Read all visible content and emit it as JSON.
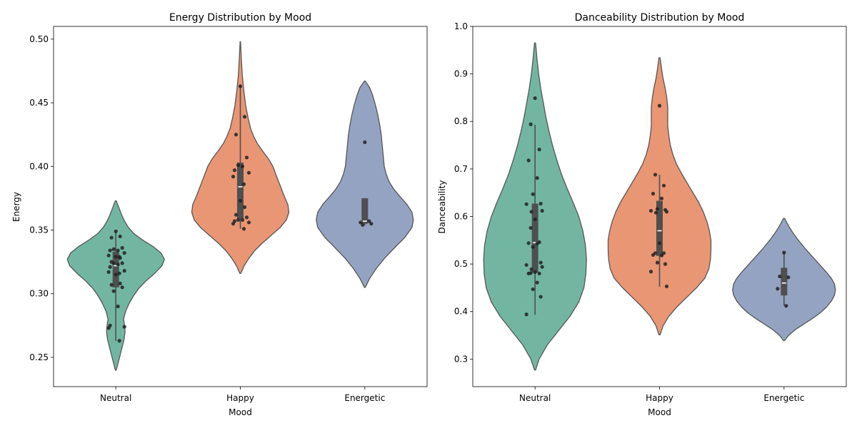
{
  "chart_data": [
    {
      "type": "violin",
      "title": "Energy Distribution by Mood",
      "xlabel": "Mood",
      "ylabel": "Energy",
      "ylim": [
        0.227,
        0.51
      ],
      "yticks": [
        0.25,
        0.3,
        0.35,
        0.4,
        0.45,
        0.5
      ],
      "ytick_labels": [
        "0.25",
        "0.30",
        "0.35",
        "0.40",
        "0.45",
        "0.50"
      ],
      "categories": [
        "Neutral",
        "Happy",
        "Energetic"
      ],
      "colors": [
        "#72b6a1",
        "#e99675",
        "#95a3c3"
      ],
      "violins": [
        {
          "category": "Neutral",
          "min": 0.24,
          "max": 0.373,
          "profile": [
            [
              0.24,
              0.01
            ],
            [
              0.246,
              0.05
            ],
            [
              0.252,
              0.09
            ],
            [
              0.258,
              0.13
            ],
            [
              0.264,
              0.17
            ],
            [
              0.27,
              0.19
            ],
            [
              0.275,
              0.18
            ],
            [
              0.28,
              0.16
            ],
            [
              0.286,
              0.2
            ],
            [
              0.292,
              0.27
            ],
            [
              0.298,
              0.36
            ],
            [
              0.304,
              0.47
            ],
            [
              0.31,
              0.62
            ],
            [
              0.316,
              0.8
            ],
            [
              0.322,
              0.95
            ],
            [
              0.327,
              1.0
            ],
            [
              0.332,
              0.93
            ],
            [
              0.337,
              0.77
            ],
            [
              0.342,
              0.56
            ],
            [
              0.347,
              0.38
            ],
            [
              0.352,
              0.26
            ],
            [
              0.357,
              0.18
            ],
            [
              0.362,
              0.12
            ],
            [
              0.367,
              0.07
            ],
            [
              0.373,
              0.01
            ]
          ],
          "box": {
            "q1": 0.305,
            "median": 0.322,
            "q3": 0.333,
            "whisker_low": 0.263,
            "whisker_high": 0.349
          },
          "points": [
            0.349,
            0.345,
            0.344,
            0.336,
            0.335,
            0.334,
            0.334,
            0.332,
            0.33,
            0.329,
            0.329,
            0.328,
            0.325,
            0.324,
            0.324,
            0.323,
            0.321,
            0.318,
            0.317,
            0.316,
            0.315,
            0.308,
            0.307,
            0.305,
            0.302,
            0.29,
            0.275,
            0.274,
            0.273,
            0.263
          ]
        },
        {
          "category": "Happy",
          "min": 0.316,
          "max": 0.498,
          "profile": [
            [
              0.316,
              0.01
            ],
            [
              0.322,
              0.08
            ],
            [
              0.328,
              0.18
            ],
            [
              0.334,
              0.3
            ],
            [
              0.34,
              0.46
            ],
            [
              0.346,
              0.64
            ],
            [
              0.352,
              0.82
            ],
            [
              0.358,
              0.95
            ],
            [
              0.364,
              1.0
            ],
            [
              0.37,
              0.98
            ],
            [
              0.376,
              0.91
            ],
            [
              0.382,
              0.85
            ],
            [
              0.388,
              0.79
            ],
            [
              0.394,
              0.73
            ],
            [
              0.4,
              0.67
            ],
            [
              0.406,
              0.58
            ],
            [
              0.412,
              0.46
            ],
            [
              0.418,
              0.35
            ],
            [
              0.424,
              0.27
            ],
            [
              0.43,
              0.21
            ],
            [
              0.438,
              0.16
            ],
            [
              0.448,
              0.11
            ],
            [
              0.46,
              0.07
            ],
            [
              0.472,
              0.04
            ],
            [
              0.485,
              0.02
            ],
            [
              0.498,
              0.005
            ]
          ],
          "box": {
            "q1": 0.359,
            "median": 0.384,
            "q3": 0.403,
            "whisker_low": 0.351,
            "whisker_high": 0.463
          },
          "points": [
            0.463,
            0.439,
            0.425,
            0.407,
            0.401,
            0.4,
            0.397,
            0.395,
            0.392,
            0.386,
            0.373,
            0.368,
            0.362,
            0.36,
            0.358,
            0.358,
            0.357,
            0.356,
            0.355,
            0.351
          ]
        },
        {
          "category": "Energetic",
          "min": 0.305,
          "max": 0.467,
          "profile": [
            [
              0.305,
              0.01
            ],
            [
              0.312,
              0.1
            ],
            [
              0.32,
              0.24
            ],
            [
              0.328,
              0.41
            ],
            [
              0.336,
              0.61
            ],
            [
              0.344,
              0.82
            ],
            [
              0.352,
              0.97
            ],
            [
              0.358,
              1.0
            ],
            [
              0.364,
              0.97
            ],
            [
              0.37,
              0.87
            ],
            [
              0.376,
              0.73
            ],
            [
              0.382,
              0.6
            ],
            [
              0.388,
              0.5
            ],
            [
              0.394,
              0.44
            ],
            [
              0.4,
              0.4
            ],
            [
              0.408,
              0.38
            ],
            [
              0.416,
              0.36
            ],
            [
              0.424,
              0.34
            ],
            [
              0.432,
              0.31
            ],
            [
              0.44,
              0.27
            ],
            [
              0.448,
              0.22
            ],
            [
              0.456,
              0.16
            ],
            [
              0.462,
              0.1
            ],
            [
              0.467,
              0.01
            ]
          ],
          "box": {
            "q1": 0.355,
            "median": 0.357,
            "q3": 0.375,
            "whisker_low": 0.354,
            "whisker_high": 0.375
          },
          "points": [
            0.419,
            0.357,
            0.356,
            0.355,
            0.354
          ]
        }
      ]
    },
    {
      "type": "violin",
      "title": "Danceability Distribution by Mood",
      "xlabel": "Mood",
      "ylabel": "Danceability",
      "ylim": [
        0.242,
        1.0
      ],
      "yticks": [
        0.3,
        0.4,
        0.5,
        0.6,
        0.7,
        0.8,
        0.9,
        1.0
      ],
      "ytick_labels": [
        "0.3",
        "0.4",
        "0.5",
        "0.6",
        "0.7",
        "0.8",
        "0.9",
        "1.0"
      ],
      "categories": [
        "Neutral",
        "Happy",
        "Energetic"
      ],
      "colors": [
        "#72b6a1",
        "#e99675",
        "#95a3c3"
      ],
      "violins": [
        {
          "category": "Neutral",
          "min": 0.277,
          "max": 0.965,
          "profile": [
            [
              0.277,
              0.01
            ],
            [
              0.3,
              0.08
            ],
            [
              0.33,
              0.24
            ],
            [
              0.36,
              0.46
            ],
            [
              0.39,
              0.68
            ],
            [
              0.42,
              0.85
            ],
            [
              0.45,
              0.95
            ],
            [
              0.48,
              0.99
            ],
            [
              0.51,
              1.0
            ],
            [
              0.54,
              0.98
            ],
            [
              0.57,
              0.93
            ],
            [
              0.6,
              0.85
            ],
            [
              0.63,
              0.74
            ],
            [
              0.66,
              0.62
            ],
            [
              0.69,
              0.51
            ],
            [
              0.72,
              0.42
            ],
            [
              0.75,
              0.34
            ],
            [
              0.78,
              0.27
            ],
            [
              0.81,
              0.21
            ],
            [
              0.84,
              0.16
            ],
            [
              0.87,
              0.11
            ],
            [
              0.9,
              0.07
            ],
            [
              0.93,
              0.04
            ],
            [
              0.965,
              0.01
            ]
          ],
          "box": {
            "q1": 0.482,
            "median": 0.545,
            "q3": 0.627,
            "whisker_low": 0.393,
            "whisker_high": 0.793
          },
          "points": [
            0.849,
            0.794,
            0.741,
            0.718,
            0.681,
            0.647,
            0.627,
            0.626,
            0.612,
            0.61,
            0.594,
            0.576,
            0.546,
            0.544,
            0.543,
            0.536,
            0.503,
            0.498,
            0.494,
            0.489,
            0.483,
            0.481,
            0.48,
            0.48,
            0.461,
            0.447,
            0.431,
            0.394
          ]
        },
        {
          "category": "Happy",
          "min": 0.351,
          "max": 0.934,
          "profile": [
            [
              0.351,
              0.01
            ],
            [
              0.37,
              0.07
            ],
            [
              0.39,
              0.18
            ],
            [
              0.41,
              0.34
            ],
            [
              0.43,
              0.53
            ],
            [
              0.45,
              0.72
            ],
            [
              0.47,
              0.88
            ],
            [
              0.49,
              0.96
            ],
            [
              0.51,
              0.99
            ],
            [
              0.53,
              1.0
            ],
            [
              0.55,
              1.0
            ],
            [
              0.57,
              0.97
            ],
            [
              0.59,
              0.92
            ],
            [
              0.61,
              0.85
            ],
            [
              0.63,
              0.76
            ],
            [
              0.65,
              0.65
            ],
            [
              0.67,
              0.54
            ],
            [
              0.69,
              0.43
            ],
            [
              0.71,
              0.33
            ],
            [
              0.73,
              0.26
            ],
            [
              0.75,
              0.21
            ],
            [
              0.77,
              0.18
            ],
            [
              0.79,
              0.16
            ],
            [
              0.81,
              0.16
            ],
            [
              0.83,
              0.16
            ],
            [
              0.85,
              0.14
            ],
            [
              0.87,
              0.11
            ],
            [
              0.89,
              0.07
            ],
            [
              0.91,
              0.04
            ],
            [
              0.934,
              0.01
            ]
          ],
          "box": {
            "q1": 0.517,
            "median": 0.57,
            "q3": 0.633,
            "whisker_low": 0.452,
            "whisker_high": 0.688
          },
          "points": [
            0.833,
            0.688,
            0.665,
            0.648,
            0.638,
            0.616,
            0.614,
            0.612,
            0.61,
            0.608,
            0.544,
            0.523,
            0.523,
            0.519,
            0.518,
            0.503,
            0.5,
            0.484,
            0.453
          ]
        },
        {
          "category": "Energetic",
          "min": 0.339,
          "max": 0.596,
          "profile": [
            [
              0.339,
              0.01
            ],
            [
              0.35,
              0.09
            ],
            [
              0.362,
              0.22
            ],
            [
              0.374,
              0.39
            ],
            [
              0.386,
              0.56
            ],
            [
              0.398,
              0.71
            ],
            [
              0.41,
              0.83
            ],
            [
              0.422,
              0.92
            ],
            [
              0.434,
              0.98
            ],
            [
              0.446,
              1.0
            ],
            [
              0.458,
              0.98
            ],
            [
              0.47,
              0.92
            ],
            [
              0.482,
              0.83
            ],
            [
              0.494,
              0.73
            ],
            [
              0.506,
              0.63
            ],
            [
              0.518,
              0.53
            ],
            [
              0.53,
              0.43
            ],
            [
              0.542,
              0.34
            ],
            [
              0.554,
              0.25
            ],
            [
              0.566,
              0.17
            ],
            [
              0.578,
              0.1
            ],
            [
              0.59,
              0.04
            ],
            [
              0.596,
              0.01
            ]
          ],
          "box": {
            "q1": 0.434,
            "median": 0.46,
            "q3": 0.492,
            "whisker_low": 0.412,
            "whisker_high": 0.524
          },
          "points": [
            0.524,
            0.474,
            0.472,
            0.448,
            0.412
          ]
        }
      ]
    }
  ]
}
